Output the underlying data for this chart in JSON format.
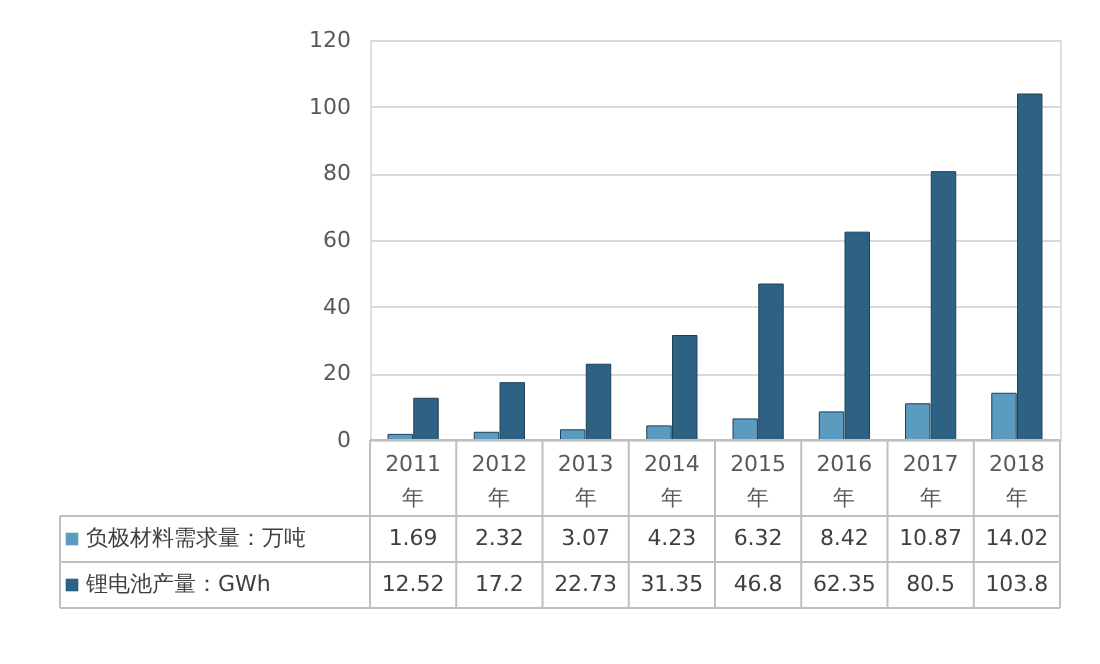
{
  "chart_data": {
    "type": "bar",
    "categories": [
      "2011年",
      "2012年",
      "2013年",
      "2014年",
      "2015年",
      "2016年",
      "2017年",
      "2018年"
    ],
    "series": [
      {
        "name": "负极材料需求量：万吨",
        "color": "#5b9bc0",
        "values": [
          1.69,
          2.32,
          3.07,
          4.23,
          6.32,
          8.42,
          10.87,
          14.02
        ]
      },
      {
        "name": "锂电池产量：GWh",
        "color": "#2e6285",
        "values": [
          12.52,
          17.2,
          22.73,
          31.35,
          46.8,
          62.35,
          80.5,
          103.8
        ]
      }
    ],
    "ylim": [
      0,
      120
    ],
    "yticks": [
      0,
      20,
      40,
      60,
      80,
      100,
      120
    ],
    "grid": "y",
    "legend": "bottom",
    "data_labels": true
  }
}
